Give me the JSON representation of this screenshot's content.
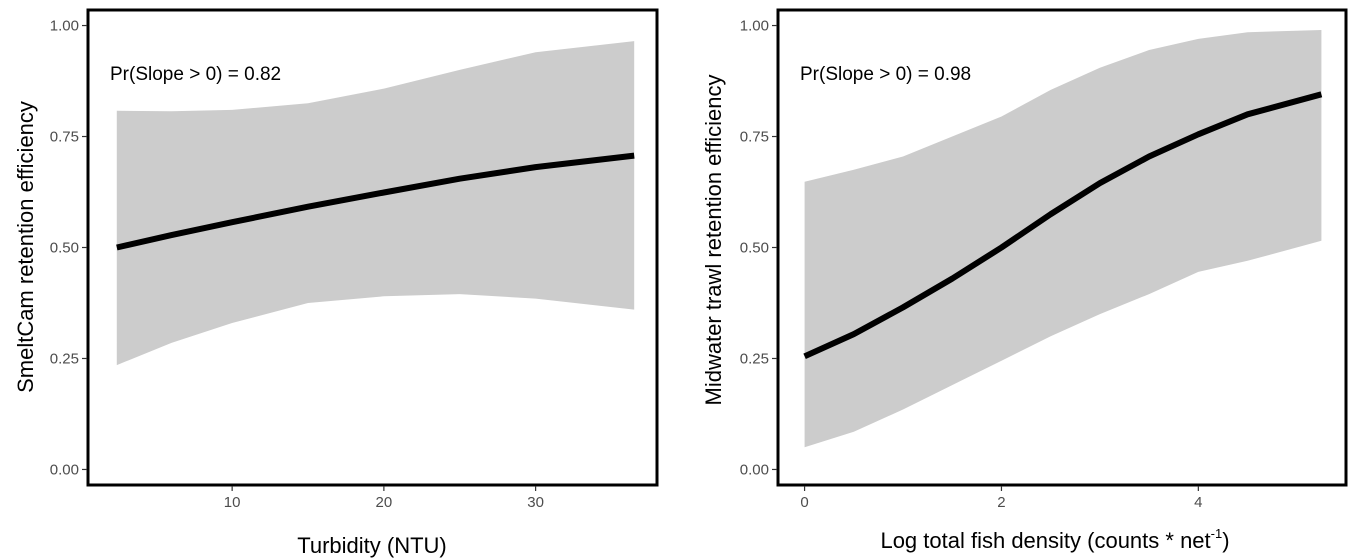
{
  "colors": {
    "band": "#cccccc",
    "line": "#000000",
    "frame": "#000000",
    "tick_text": "#4d4d4d"
  },
  "chart_data": [
    {
      "type": "line",
      "xlabel": "Turbidity (NTU)",
      "ylabel": "SmeltCam retention efficiency",
      "annotation": "Pr(Slope > 0) = 0.82",
      "xlim": [
        0.5,
        38
      ],
      "ylim": [
        -0.035,
        1.035
      ],
      "x_ticks": [
        10,
        20,
        30
      ],
      "x_tick_labels": [
        "10",
        "20",
        "30"
      ],
      "y_ticks": [
        0,
        0.25,
        0.5,
        0.75,
        1
      ],
      "y_tick_labels": [
        "0.00",
        "0.25",
        "0.50",
        "0.75",
        "1.00"
      ],
      "grid": false,
      "series": [
        {
          "x": [
            2.4,
            6,
            10,
            15,
            20,
            25,
            30,
            36.5
          ],
          "y": [
            0.5,
            0.528,
            0.557,
            0.592,
            0.624,
            0.655,
            0.681,
            0.707
          ],
          "lower": [
            0.235,
            0.285,
            0.33,
            0.375,
            0.39,
            0.395,
            0.385,
            0.36
          ],
          "upper": [
            0.808,
            0.807,
            0.81,
            0.825,
            0.858,
            0.9,
            0.94,
            0.965
          ]
        }
      ]
    },
    {
      "type": "line",
      "xlabel": "Log total fish density (counts * net",
      "xlabel_sup": "-1",
      "xlabel_tail": ")",
      "ylabel": "Midwater trawl retention efficiency",
      "annotation": "Pr(Slope > 0) = 0.98",
      "xlim": [
        -0.27,
        5.5
      ],
      "ylim": [
        -0.035,
        1.035
      ],
      "x_ticks": [
        0,
        2,
        4
      ],
      "x_tick_labels": [
        "0",
        "2",
        "4"
      ],
      "y_ticks": [
        0,
        0.25,
        0.5,
        0.75,
        1
      ],
      "y_tick_labels": [
        "0.00",
        "0.25",
        "0.50",
        "0.75",
        "1.00"
      ],
      "grid": false,
      "series": [
        {
          "x": [
            0,
            0.5,
            1,
            1.5,
            2,
            2.5,
            3,
            3.5,
            4,
            4.5,
            5.25
          ],
          "y": [
            0.255,
            0.305,
            0.365,
            0.43,
            0.5,
            0.575,
            0.645,
            0.705,
            0.755,
            0.8,
            0.845
          ],
          "lower": [
            0.05,
            0.085,
            0.135,
            0.19,
            0.245,
            0.3,
            0.35,
            0.395,
            0.445,
            0.47,
            0.515
          ],
          "upper": [
            0.648,
            0.675,
            0.705,
            0.75,
            0.795,
            0.855,
            0.905,
            0.945,
            0.97,
            0.985,
            0.99
          ]
        }
      ]
    }
  ]
}
